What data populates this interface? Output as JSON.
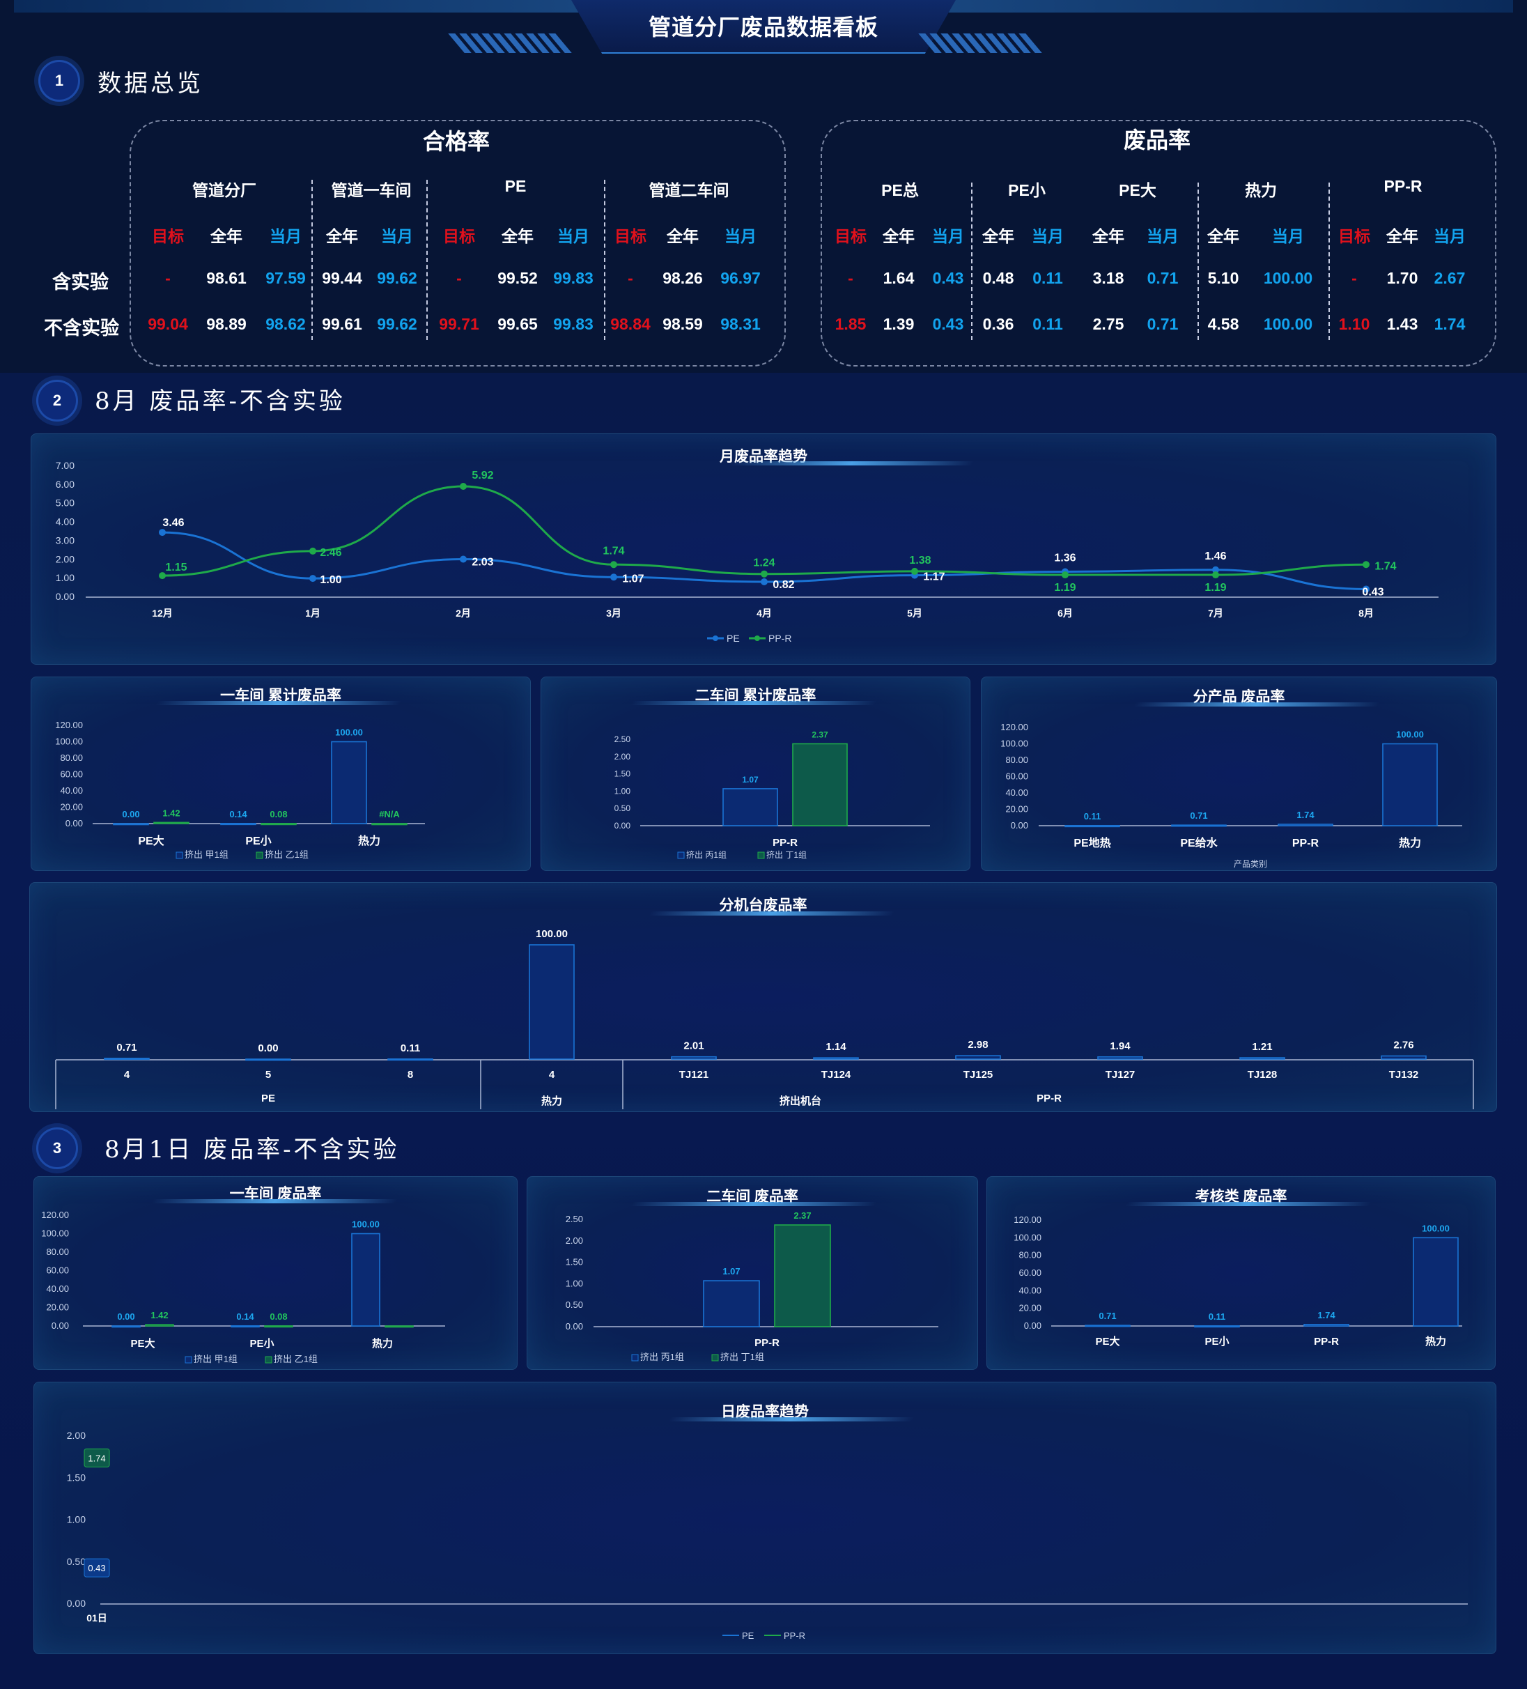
{
  "title": "管道分厂废品数据看板",
  "sections": {
    "s1": {
      "num": "1",
      "title": "数据总览"
    },
    "s2": {
      "num": "2",
      "title": "8月 废品率-不含实验"
    },
    "s3": {
      "num": "3",
      "title": "8月1日 废品率-不含实验"
    }
  },
  "pass_rate": {
    "title": "合格率",
    "groups": [
      "管道分厂",
      "管道一车间",
      "PE",
      "管道二车间"
    ],
    "subheaders": [
      "目标",
      "全年",
      "当月",
      "全年",
      "当月",
      "目标",
      "全年",
      "当月",
      "目标",
      "全年",
      "当月"
    ],
    "rows": [
      {
        "label": "含实验",
        "values": [
          "-",
          "98.61",
          "97.59",
          "99.44",
          "99.62",
          "-",
          "99.52",
          "99.83",
          "-",
          "98.26",
          "96.97"
        ]
      },
      {
        "label": "不含实验",
        "values": [
          "99.04",
          "98.89",
          "98.62",
          "99.61",
          "99.62",
          "99.71",
          "99.65",
          "99.83",
          "98.84",
          "98.59",
          "98.31"
        ]
      }
    ]
  },
  "scrap_rate": {
    "title": "废品率",
    "groups": [
      "PE总",
      "PE小",
      "PE大",
      "热力",
      "PP-R"
    ],
    "subheaders": [
      "目标",
      "全年",
      "当月",
      "全年",
      "当月",
      "全年",
      "当月",
      "全年",
      "当月",
      "目标",
      "全年",
      "当月"
    ],
    "rows": [
      {
        "values": [
          "-",
          "1.64",
          "0.43",
          "0.48",
          "0.11",
          "3.18",
          "0.71",
          "5.10",
          "100.00",
          "-",
          "1.70",
          "2.67"
        ]
      },
      {
        "values": [
          "1.85",
          "1.39",
          "0.43",
          "0.36",
          "0.11",
          "2.75",
          "0.71",
          "4.58",
          "100.00",
          "1.10",
          "1.43",
          "1.74"
        ]
      }
    ]
  },
  "colors": {
    "pe": "#1a73d4",
    "ppr": "#1faa4a",
    "red": "#e0111c",
    "blue": "#12a3ee"
  },
  "chart_data": [
    {
      "id": "monthly",
      "type": "line",
      "title": "月废品率趋势",
      "categories": [
        "12月",
        "1月",
        "2月",
        "3月",
        "4月",
        "5月",
        "6月",
        "7月",
        "8月"
      ],
      "ylim": [
        0,
        7
      ],
      "yticks": [
        "7.00",
        "6.00",
        "5.00",
        "4.00",
        "3.00",
        "2.00",
        "1.00",
        "0.00"
      ],
      "series": [
        {
          "name": "PE",
          "values": [
            3.46,
            1.0,
            2.03,
            1.07,
            0.82,
            1.17,
            1.36,
            1.46,
            0.43
          ]
        },
        {
          "name": "PP-R",
          "values": [
            1.15,
            2.46,
            5.92,
            1.74,
            1.24,
            1.38,
            1.19,
            1.19,
            1.74
          ]
        }
      ],
      "legend": "bottom"
    },
    {
      "id": "ws1_cum",
      "type": "bar",
      "title": "一车间 累计废品率",
      "categories": [
        "PE大",
        "PE小",
        "热力"
      ],
      "ylim": [
        0,
        120
      ],
      "yticks": [
        "120.00",
        "100.00",
        "80.00",
        "60.00",
        "40.00",
        "20.00",
        "0.00"
      ],
      "series": [
        {
          "name": "挤出 甲1组",
          "values": [
            0.0,
            0.14,
            100.0
          ],
          "labels": [
            "0.00",
            "0.14",
            "100.00"
          ]
        },
        {
          "name": "挤出 乙1组",
          "values": [
            1.42,
            0.08,
            0
          ],
          "labels": [
            "1.42",
            "0.08",
            "#N/A"
          ]
        }
      ],
      "legend": "bottom"
    },
    {
      "id": "ws2_cum",
      "type": "bar",
      "title": "二车间 累计废品率",
      "categories": [
        "PP-R"
      ],
      "ylim": [
        0,
        2.5
      ],
      "yticks": [
        "2.50",
        "2.00",
        "1.50",
        "1.00",
        "0.50",
        "0.00"
      ],
      "series": [
        {
          "name": "挤出 丙1组",
          "values": [
            1.07
          ],
          "labels": [
            "1.07"
          ]
        },
        {
          "name": "挤出 丁1组",
          "values": [
            2.37
          ],
          "labels": [
            "2.37"
          ]
        }
      ],
      "legend": "bottom"
    },
    {
      "id": "product",
      "type": "bar",
      "title": "分产品 废品率",
      "categories": [
        "PE地热",
        "PE给水",
        "PP-R",
        "热力"
      ],
      "xlabel": "产品类别",
      "ylim": [
        0,
        120
      ],
      "yticks": [
        "120.00",
        "100.00",
        "80.00",
        "60.00",
        "40.00",
        "20.00",
        "0.00"
      ],
      "series": [
        {
          "name": "",
          "values": [
            0.11,
            0.71,
            1.74,
            100.0
          ],
          "labels": [
            "0.11",
            "0.71",
            "1.74",
            "100.00"
          ]
        }
      ]
    },
    {
      "id": "machine",
      "type": "bar",
      "title": "分机台废品率",
      "categories": [
        "4",
        "5",
        "8",
        "4",
        "TJ121",
        "TJ124",
        "TJ125",
        "TJ127",
        "TJ128",
        "TJ132"
      ],
      "groups": [
        "PE",
        "热力",
        "PP-R"
      ],
      "outer_label": "挤出机台",
      "ylim": [
        0,
        100
      ],
      "series": [
        {
          "name": "",
          "values": [
            0.71,
            0.0,
            0.11,
            100.0,
            2.01,
            1.14,
            2.98,
            1.94,
            1.21,
            2.76
          ],
          "labels": [
            "0.71",
            "0.00",
            "0.11",
            "100.00",
            "2.01",
            "1.14",
            "2.98",
            "1.94",
            "1.21",
            "2.76"
          ]
        }
      ]
    },
    {
      "id": "ws1_day",
      "type": "bar",
      "title": "一车间 废品率",
      "categories": [
        "PE大",
        "PE小",
        "热力"
      ],
      "ylim": [
        0,
        120
      ],
      "yticks": [
        "120.00",
        "100.00",
        "80.00",
        "60.00",
        "40.00",
        "20.00",
        "0.00"
      ],
      "series": [
        {
          "name": "挤出 甲1组",
          "values": [
            0.0,
            0.14,
            100.0
          ],
          "labels": [
            "0.00",
            "0.14",
            "100.00"
          ]
        },
        {
          "name": "挤出 乙1组",
          "values": [
            1.42,
            0.08,
            0
          ],
          "labels": [
            "1.42",
            "0.08",
            ""
          ]
        }
      ],
      "legend": "bottom"
    },
    {
      "id": "ws2_day",
      "type": "bar",
      "title": "二车间 废品率",
      "categories": [
        "PP-R"
      ],
      "ylim": [
        0,
        2.5
      ],
      "yticks": [
        "2.50",
        "2.00",
        "1.50",
        "1.00",
        "0.50",
        "0.00"
      ],
      "series": [
        {
          "name": "挤出 丙1组",
          "values": [
            1.07
          ],
          "labels": [
            "1.07"
          ]
        },
        {
          "name": "挤出 丁1组",
          "values": [
            2.37
          ],
          "labels": [
            "2.37"
          ]
        }
      ],
      "legend": "bottom"
    },
    {
      "id": "assess",
      "type": "bar",
      "title": "考核类 废品率",
      "categories": [
        "PE大",
        "PE小",
        "PP-R",
        "热力"
      ],
      "ylim": [
        0,
        120
      ],
      "yticks": [
        "120.00",
        "100.00",
        "80.00",
        "60.00",
        "40.00",
        "20.00",
        "0.00"
      ],
      "series": [
        {
          "name": "",
          "values": [
            0.71,
            0.11,
            1.74,
            100.0
          ],
          "labels": [
            "0.71",
            "0.11",
            "1.74",
            "100.00"
          ]
        }
      ]
    },
    {
      "id": "daily",
      "type": "line",
      "title": "日废品率趋势",
      "categories": [
        "01日"
      ],
      "ylim": [
        0,
        2
      ],
      "yticks": [
        "2.00",
        "1.50",
        "1.00",
        "0.50",
        "0.00"
      ],
      "series": [
        {
          "name": "PE",
          "values": [
            0.43
          ],
          "labels": [
            "0.43"
          ]
        },
        {
          "name": "PP-R",
          "values": [
            1.74
          ],
          "labels": [
            "1.74"
          ]
        }
      ],
      "legend": "bottom"
    }
  ]
}
